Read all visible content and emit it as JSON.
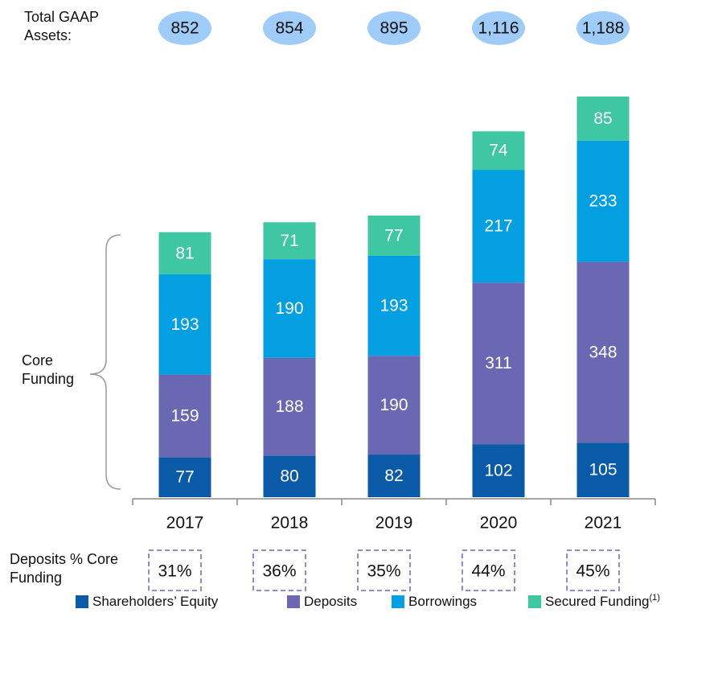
{
  "chart_data": {
    "type": "stacked_bar",
    "categories": [
      "2017",
      "2018",
      "2019",
      "2020",
      "2021"
    ],
    "series": [
      {
        "name": "Shareholders’ Equity",
        "color": "#0b5aa8",
        "values": [
          77,
          80,
          82,
          102,
          105
        ]
      },
      {
        "name": "Deposits",
        "color": "#6a68b3",
        "values": [
          159,
          188,
          190,
          311,
          348
        ]
      },
      {
        "name": "Borrowings",
        "color": "#049fe0",
        "values": [
          193,
          190,
          193,
          217,
          233
        ]
      },
      {
        "name": "Secured Funding",
        "note": "(1)",
        "color": "#3fc6a3",
        "values": [
          81,
          71,
          77,
          74,
          85
        ]
      }
    ],
    "gaap_assets": {
      "label": "Total GAAP Assets:",
      "values": [
        852,
        854,
        895,
        1116,
        1188
      ],
      "value_labels": [
        "852",
        "854",
        "895",
        "1,116",
        "1,188"
      ],
      "color": "#9ecbf7"
    },
    "core_funding_label": "Core Funding",
    "deposits_pct": {
      "label": "Deposits % Core Funding",
      "values": [
        31,
        36,
        35,
        44,
        45
      ],
      "value_labels": [
        "31%",
        "36%",
        "35%",
        "44%",
        "45%"
      ]
    }
  }
}
